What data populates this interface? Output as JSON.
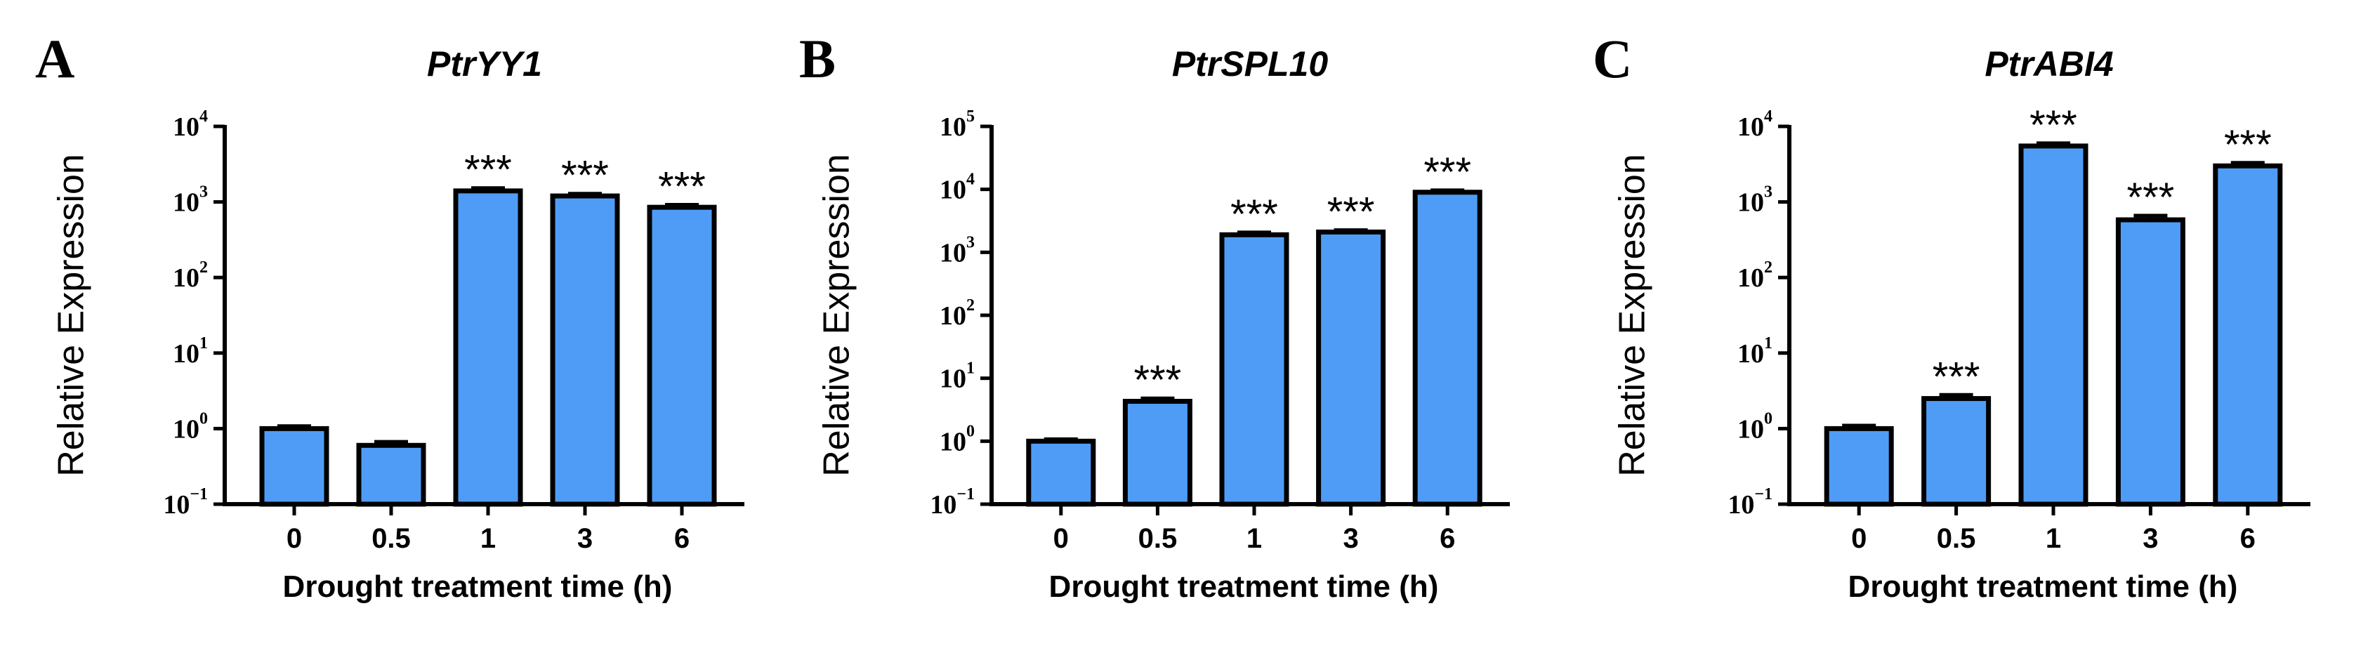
{
  "colors": {
    "bar_fill": "#4F9CF6",
    "stroke": "#000000"
  },
  "chart_data": [
    {
      "type": "bar",
      "panel": "A",
      "title": "PtrYY1",
      "xlabel": "Drought treatment time (h)",
      "ylabel": "Relative Expression",
      "yscale": "log",
      "ylim": [
        0.1,
        10000
      ],
      "yticks": [
        {
          "base": "10",
          "exp": "−1"
        },
        {
          "base": "10",
          "exp": "0"
        },
        {
          "base": "10",
          "exp": "1"
        },
        {
          "base": "10",
          "exp": "2"
        },
        {
          "base": "10",
          "exp": "3"
        },
        {
          "base": "10",
          "exp": "4"
        }
      ],
      "categories": [
        "0",
        "0.5",
        "1",
        "3",
        "6"
      ],
      "values": [
        1.0,
        0.6,
        1400,
        1200,
        850
      ],
      "errors": [
        0.08,
        0.07,
        130,
        90,
        70
      ],
      "significance": [
        "",
        "",
        "***",
        "***",
        "***"
      ]
    },
    {
      "type": "bar",
      "panel": "B",
      "title": "PtrSPL10",
      "xlabel": "Drought treatment time (h)",
      "ylabel": "Relative Expression",
      "yscale": "log",
      "ylim": [
        0.1,
        100000
      ],
      "yticks": [
        {
          "base": "10",
          "exp": "−1"
        },
        {
          "base": "10",
          "exp": "0"
        },
        {
          "base": "10",
          "exp": "1"
        },
        {
          "base": "10",
          "exp": "2"
        },
        {
          "base": "10",
          "exp": "3"
        },
        {
          "base": "10",
          "exp": "4"
        },
        {
          "base": "10",
          "exp": "5"
        }
      ],
      "categories": [
        "0",
        "0.5",
        "1",
        "3",
        "6"
      ],
      "values": [
        1.0,
        4.3,
        1900,
        2100,
        9000
      ],
      "errors": [
        0.08,
        0.5,
        180,
        160,
        700
      ],
      "significance": [
        "",
        "***",
        "***",
        "***",
        "***"
      ]
    },
    {
      "type": "bar",
      "panel": "C",
      "title": "PtrABI4",
      "xlabel": "Drought treatment time (h)",
      "ylabel": "Relative Expression",
      "yscale": "log",
      "ylim": [
        0.1,
        10000
      ],
      "yticks": [
        {
          "base": "10",
          "exp": "−1"
        },
        {
          "base": "10",
          "exp": "0"
        },
        {
          "base": "10",
          "exp": "1"
        },
        {
          "base": "10",
          "exp": "2"
        },
        {
          "base": "10",
          "exp": "3"
        },
        {
          "base": "10",
          "exp": "4"
        }
      ],
      "categories": [
        "0",
        "0.5",
        "1",
        "3",
        "6"
      ],
      "values": [
        1.0,
        2.5,
        5500,
        580,
        3000
      ],
      "errors": [
        0.1,
        0.3,
        500,
        80,
        300
      ],
      "significance": [
        "",
        "***",
        "***",
        "***",
        "***"
      ]
    }
  ]
}
